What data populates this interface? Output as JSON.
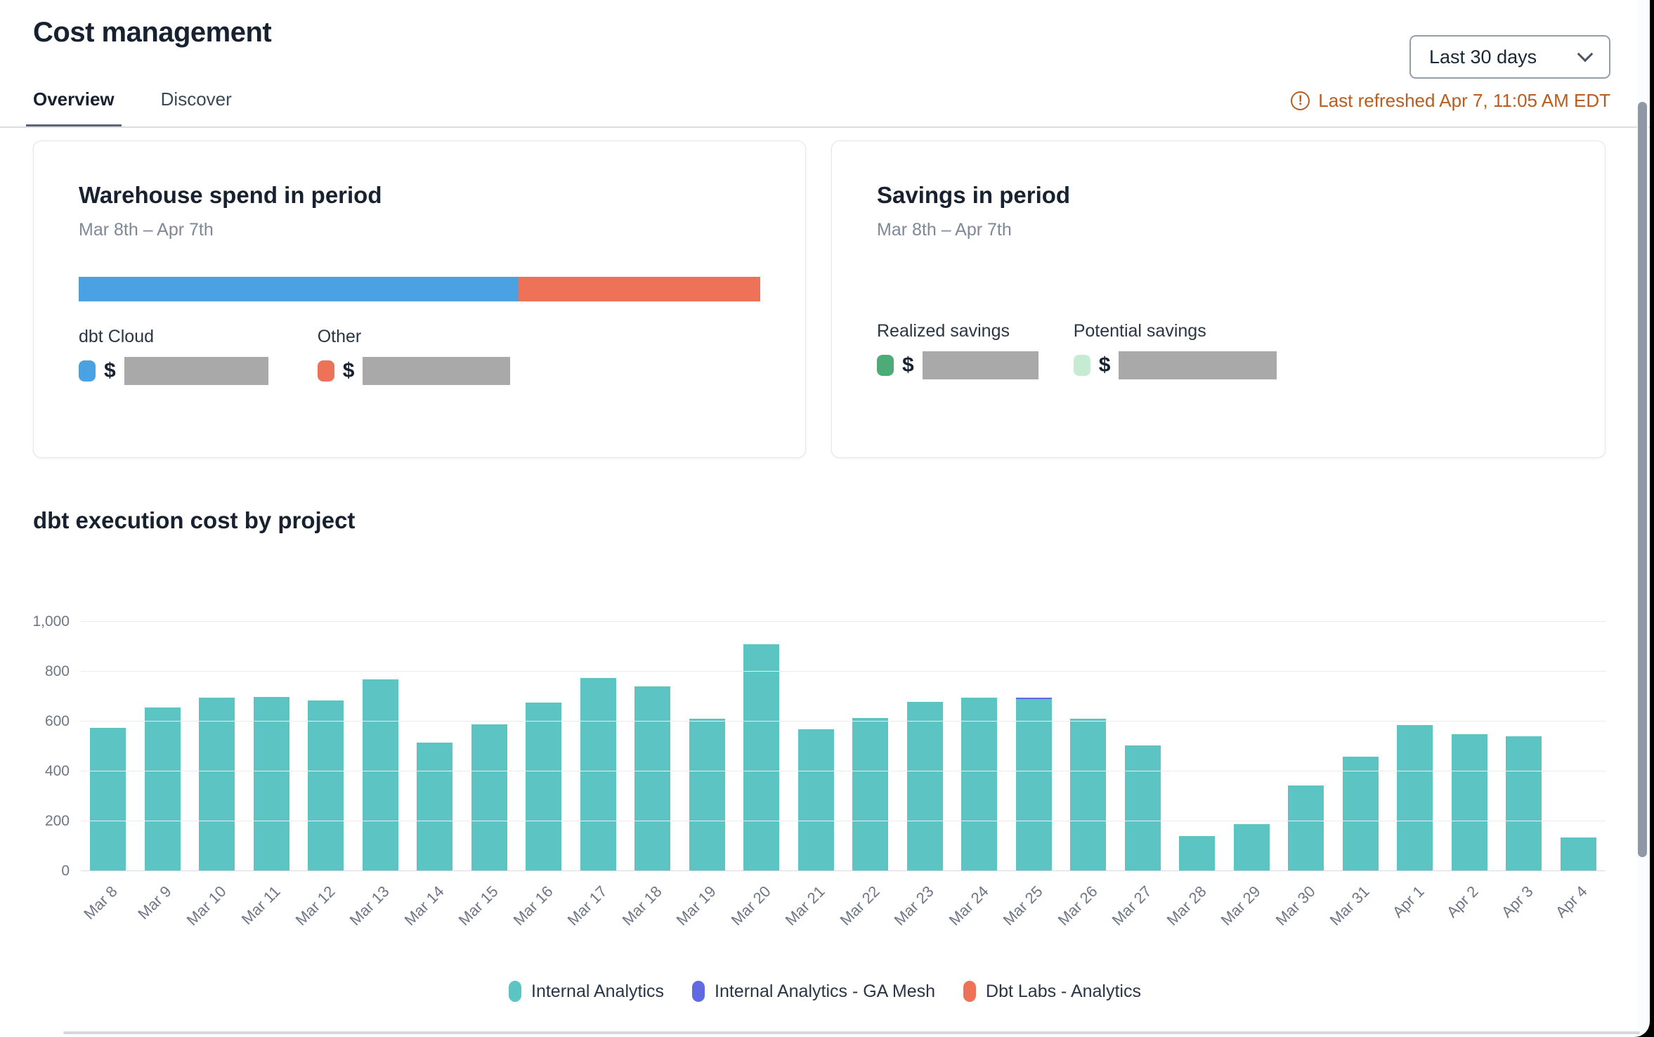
{
  "icons": {
    "alert_glyph": "!"
  },
  "header": {
    "title": "Cost management",
    "range_select": {
      "value": "Last 30 days"
    },
    "last_refreshed": "Last refreshed Apr 7, 11:05 AM EDT"
  },
  "tabs": [
    {
      "label": "Overview",
      "active": true
    },
    {
      "label": "Discover",
      "active": false
    }
  ],
  "cards": {
    "warehouse": {
      "title": "Warehouse spend in period",
      "subtitle": "Mar 8th – Apr 7th",
      "spend_bar": {
        "segments": [
          {
            "label": "dbt Cloud",
            "color": "#4aa2e2",
            "pct": 64.5
          },
          {
            "label": "Other",
            "color": "#ed7257",
            "pct": 35.5
          }
        ]
      },
      "legend": [
        {
          "label": "dbt Cloud",
          "color": "#4aa2e2",
          "currency": "$",
          "value_redacted": true
        },
        {
          "label": "Other",
          "color": "#ed7257",
          "currency": "$",
          "value_redacted": true
        }
      ]
    },
    "savings": {
      "title": "Savings in period",
      "subtitle": "Mar 8th – Apr 7th",
      "legend": [
        {
          "label": "Realized savings",
          "color": "#4cab77",
          "currency": "$",
          "value_redacted": true
        },
        {
          "label": "Potential savings",
          "color": "#c5ebd3",
          "currency": "$",
          "value_redacted": true
        }
      ]
    }
  },
  "chart_section": {
    "title": "dbt execution cost by project"
  },
  "chart_data": {
    "type": "bar",
    "title": "dbt execution cost by project",
    "categories": [
      "Mar 8",
      "Mar 9",
      "Mar 10",
      "Mar 11",
      "Mar 12",
      "Mar 13",
      "Mar 14",
      "Mar 15",
      "Mar 16",
      "Mar 17",
      "Mar 18",
      "Mar 19",
      "Mar 20",
      "Mar 21",
      "Mar 22",
      "Mar 23",
      "Mar 24",
      "Mar 25",
      "Mar 26",
      "Mar 27",
      "Mar 28",
      "Mar 29",
      "Mar 30",
      "Mar 31",
      "Apr 1",
      "Apr 2",
      "Apr 3",
      "Apr 4"
    ],
    "series": [
      {
        "name": "Internal Analytics",
        "color": "#5cc4c3",
        "values": [
          575,
          655,
          695,
          700,
          685,
          770,
          515,
          590,
          675,
          775,
          740,
          610,
          910,
          570,
          615,
          680,
          695,
          690,
          610,
          505,
          140,
          190,
          345,
          460,
          585,
          550,
          540,
          135
        ]
      },
      {
        "name": "Internal Analytics - GA Mesh",
        "color": "#6269e2",
        "values": [
          0,
          0,
          0,
          0,
          0,
          0,
          0,
          0,
          0,
          0,
          0,
          0,
          0,
          0,
          0,
          0,
          0,
          5,
          0,
          0,
          0,
          0,
          0,
          0,
          0,
          0,
          0,
          0
        ]
      },
      {
        "name": "Dbt Labs - Analytics",
        "color": "#ed7257",
        "values": [
          0,
          0,
          0,
          0,
          0,
          0,
          0,
          0,
          0,
          0,
          0,
          0,
          0,
          0,
          0,
          0,
          0,
          0,
          0,
          0,
          0,
          0,
          0,
          0,
          0,
          0,
          0,
          0
        ]
      }
    ],
    "ylim": [
      0,
      1000
    ],
    "yticks": [
      {
        "label": "0",
        "value": 0
      },
      {
        "label": "200",
        "value": 200
      },
      {
        "label": "400",
        "value": 400
      },
      {
        "label": "600",
        "value": 600
      },
      {
        "label": "800",
        "value": 800
      },
      {
        "label": "1,000",
        "value": 1000
      }
    ],
    "grid": true,
    "legend_position": "bottom"
  }
}
